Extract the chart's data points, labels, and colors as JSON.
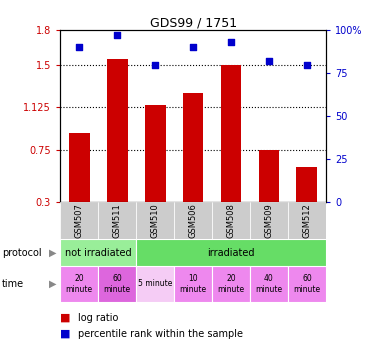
{
  "title": "GDS99 / 1751",
  "samples": [
    "GSM507",
    "GSM511",
    "GSM510",
    "GSM506",
    "GSM508",
    "GSM509",
    "GSM512"
  ],
  "log_ratio": [
    0.9,
    1.55,
    1.15,
    1.25,
    1.5,
    0.75,
    0.6
  ],
  "percentile_rank": [
    90,
    97,
    80,
    90,
    93,
    82,
    80
  ],
  "ylim_left": [
    0.3,
    1.8
  ],
  "ylim_right": [
    0,
    100
  ],
  "yticks_left": [
    0.3,
    0.75,
    1.125,
    1.5,
    1.8
  ],
  "ytick_labels_left": [
    "0.3",
    "0.75",
    "1.125",
    "1.5",
    "1.8"
  ],
  "yticks_right": [
    0,
    25,
    50,
    75,
    100
  ],
  "ytick_labels_right": [
    "0",
    "25",
    "50",
    "75",
    "100%"
  ],
  "hlines": [
    0.75,
    1.125,
    1.5
  ],
  "bar_color": "#cc0000",
  "scatter_color": "#0000cc",
  "protocol_colors": [
    "#99ee99",
    "#66dd66"
  ],
  "time_colors": [
    "#ee88ee",
    "#dd66dd",
    "#f5ccf5",
    "#ee88ee",
    "#ee88ee",
    "#ee88ee",
    "#ee88ee"
  ],
  "time_texts": [
    "20\nminute",
    "60\nminute",
    "5 minute",
    "10\nminute",
    "20\nminute",
    "40\nminute",
    "60\nminute"
  ],
  "bar_width": 0.55,
  "xtick_bg": "#cccccc"
}
